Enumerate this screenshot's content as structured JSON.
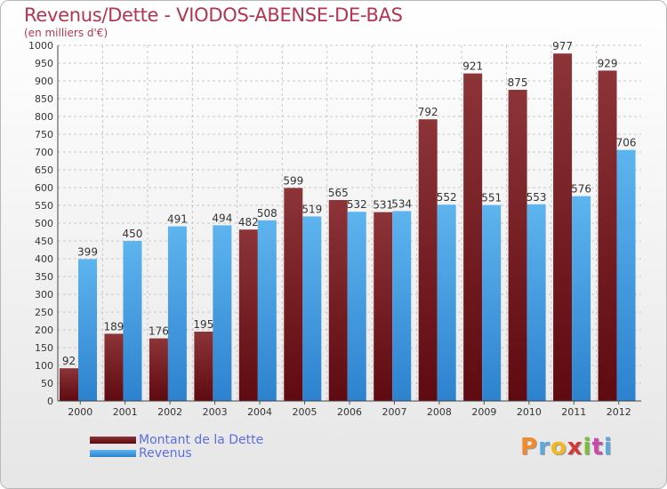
{
  "title": "Revenus/Dette - VIODOS-ABENSE-DE-BAS",
  "subtitle": "(en milliers d'€)",
  "logo": {
    "letters": [
      "P",
      "r",
      "o",
      "x",
      "i",
      "t",
      "i"
    ],
    "colors": [
      "#f28a2a",
      "#59a9e0",
      "#f2b824",
      "#d23a3a",
      "#7bbf3a",
      "#c94aa8",
      "#59a9e0"
    ]
  },
  "colors": {
    "debt_top": "#8c3438",
    "debt_bottom": "#5e0a10",
    "rev_top": "#5eb4ee",
    "rev_bottom": "#2d82cf",
    "grid": "#c8c8c8",
    "text": "#333333"
  },
  "chart_data": {
    "type": "bar",
    "categories": [
      "2000",
      "2001",
      "2002",
      "2003",
      "2004",
      "2005",
      "2006",
      "2007",
      "2008",
      "2009",
      "2010",
      "2011",
      "2012"
    ],
    "series": [
      {
        "name": "Montant de la Dette",
        "values": [
          92,
          189,
          176,
          195,
          482,
          599,
          565,
          531,
          792,
          921,
          875,
          977,
          929
        ]
      },
      {
        "name": "Revenus",
        "values": [
          399,
          450,
          491,
          494,
          508,
          519,
          532,
          534,
          552,
          551,
          553,
          576,
          706
        ]
      }
    ],
    "title": "Revenus/Dette - VIODOS-ABENSE-DE-BAS",
    "xlabel": "",
    "ylabel": "",
    "ylim": [
      0,
      1000
    ],
    "ytick_step": 50,
    "grid": true,
    "legend": "bottom-left"
  }
}
